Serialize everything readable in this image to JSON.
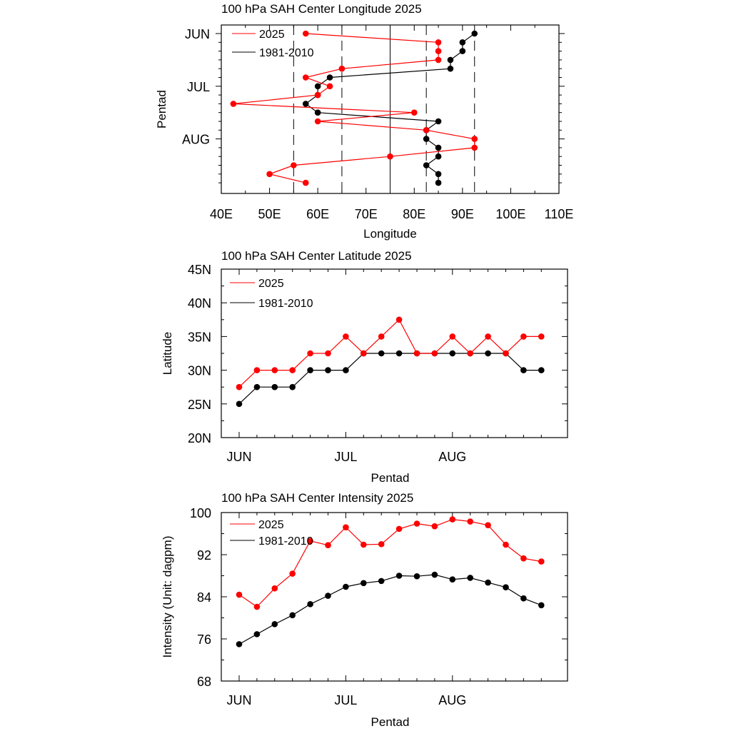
{
  "chart_data": [
    {
      "type": "line",
      "orientation": "vertical",
      "title": "100 hPa SAH Center Longitude 2025",
      "xlabel": "Longitude",
      "ylabel": "Pentad",
      "x_ticks": [
        "40E",
        "50E",
        "60E",
        "70E",
        "80E",
        "90E",
        "100E",
        "110E"
      ],
      "xlim": [
        40,
        110
      ],
      "pentad_labels": [
        "JUN",
        "JUL",
        "AUG"
      ],
      "reference_lines": [
        {
          "x": 55,
          "style": "dashed"
        },
        {
          "x": 65,
          "style": "dashed"
        },
        {
          "x": 75,
          "style": "solid"
        },
        {
          "x": 82.5,
          "style": "dashed"
        },
        {
          "x": 92.5,
          "style": "dashed"
        }
      ],
      "legend": [
        "2025",
        "1981-2010"
      ],
      "series": [
        {
          "name": "2025",
          "color": "#ff0000",
          "values": [
            57.5,
            85,
            85,
            85,
            65,
            57.5,
            62.5,
            60,
            42.5,
            80,
            60,
            82.5,
            92.5,
            92.5,
            75,
            55,
            50,
            57.5
          ]
        },
        {
          "name": "1981-2010",
          "color": "#000000",
          "values": [
            92.5,
            90,
            90,
            87.5,
            87.5,
            62.5,
            60,
            60,
            57.5,
            60,
            85,
            82.5,
            82.5,
            85,
            85,
            82.5,
            85,
            85
          ]
        }
      ]
    },
    {
      "type": "line",
      "title": "100 hPa SAH Center Latitude 2025",
      "xlabel": "Pentad",
      "ylabel": "Latitude",
      "y_ticks": [
        "20N",
        "25N",
        "30N",
        "35N",
        "40N",
        "45N"
      ],
      "ylim": [
        20,
        45
      ],
      "pentad_labels": [
        "JUN",
        "JUL",
        "AUG"
      ],
      "legend": [
        "2025",
        "1981-2010"
      ],
      "series": [
        {
          "name": "2025",
          "color": "#ff0000",
          "values": [
            27.5,
            30,
            30,
            30,
            32.5,
            32.5,
            35,
            32.5,
            35,
            37.5,
            32.5,
            32.5,
            35,
            32.5,
            35,
            32.5,
            35,
            35
          ]
        },
        {
          "name": "1981-2010",
          "color": "#000000",
          "values": [
            25,
            27.5,
            27.5,
            27.5,
            30,
            30,
            30,
            32.5,
            32.5,
            32.5,
            32.5,
            32.5,
            32.5,
            32.5,
            32.5,
            32.5,
            30,
            30
          ]
        }
      ]
    },
    {
      "type": "line",
      "title": "100 hPa SAH Center Intensity 2025",
      "xlabel": "Pentad",
      "ylabel": "Intensity (Unit: dagpm)",
      "y_ticks": [
        "68",
        "76",
        "84",
        "92",
        "100"
      ],
      "ylim": [
        68,
        100
      ],
      "pentad_labels": [
        "JUN",
        "JUL",
        "AUG"
      ],
      "legend": [
        "2025",
        "1981-2010"
      ],
      "series": [
        {
          "name": "2025",
          "color": "#ff0000",
          "values": [
            84.4,
            82.1,
            85.6,
            88.4,
            94.6,
            93.8,
            97.2,
            93.9,
            94.0,
            96.9,
            97.9,
            97.4,
            98.7,
            98.3,
            97.6,
            93.9,
            91.3,
            90.7
          ]
        },
        {
          "name": "1981-2010",
          "color": "#000000",
          "values": [
            75.0,
            76.9,
            78.8,
            80.5,
            82.6,
            84.2,
            85.9,
            86.6,
            87.0,
            88.0,
            87.9,
            88.2,
            87.3,
            87.6,
            86.7,
            85.8,
            83.7,
            82.4
          ]
        }
      ]
    }
  ]
}
